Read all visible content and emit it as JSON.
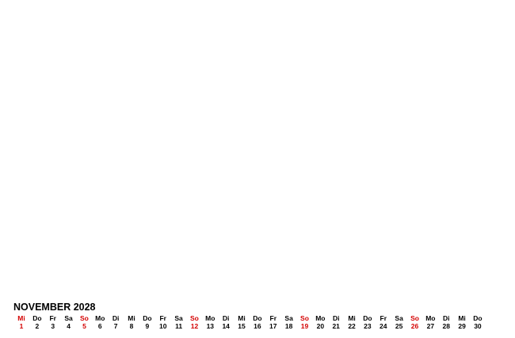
{
  "calendar": {
    "title": "NOVEMBER 2028",
    "highlight_color": "#d40000",
    "days": [
      {
        "dow": "Mi",
        "day": "1",
        "red": true
      },
      {
        "dow": "Do",
        "day": "2",
        "red": false
      },
      {
        "dow": "Fr",
        "day": "3",
        "red": false
      },
      {
        "dow": "Sa",
        "day": "4",
        "red": false
      },
      {
        "dow": "So",
        "day": "5",
        "red": true
      },
      {
        "dow": "Mo",
        "day": "6",
        "red": false
      },
      {
        "dow": "Di",
        "day": "7",
        "red": false
      },
      {
        "dow": "Mi",
        "day": "8",
        "red": false
      },
      {
        "dow": "Do",
        "day": "9",
        "red": false
      },
      {
        "dow": "Fr",
        "day": "10",
        "red": false
      },
      {
        "dow": "Sa",
        "day": "11",
        "red": false
      },
      {
        "dow": "So",
        "day": "12",
        "red": true
      },
      {
        "dow": "Mo",
        "day": "13",
        "red": false
      },
      {
        "dow": "Di",
        "day": "14",
        "red": false
      },
      {
        "dow": "Mi",
        "day": "15",
        "red": false
      },
      {
        "dow": "Do",
        "day": "16",
        "red": false
      },
      {
        "dow": "Fr",
        "day": "17",
        "red": false
      },
      {
        "dow": "Sa",
        "day": "18",
        "red": false
      },
      {
        "dow": "So",
        "day": "19",
        "red": true
      },
      {
        "dow": "Mo",
        "day": "20",
        "red": false
      },
      {
        "dow": "Di",
        "day": "21",
        "red": false
      },
      {
        "dow": "Mi",
        "day": "22",
        "red": false
      },
      {
        "dow": "Do",
        "day": "23",
        "red": false
      },
      {
        "dow": "Fr",
        "day": "24",
        "red": false
      },
      {
        "dow": "Sa",
        "day": "25",
        "red": false
      },
      {
        "dow": "So",
        "day": "26",
        "red": true
      },
      {
        "dow": "Mo",
        "day": "27",
        "red": false
      },
      {
        "dow": "Di",
        "day": "28",
        "red": false
      },
      {
        "dow": "Mi",
        "day": "29",
        "red": false
      },
      {
        "dow": "Do",
        "day": "30",
        "red": false
      }
    ]
  }
}
